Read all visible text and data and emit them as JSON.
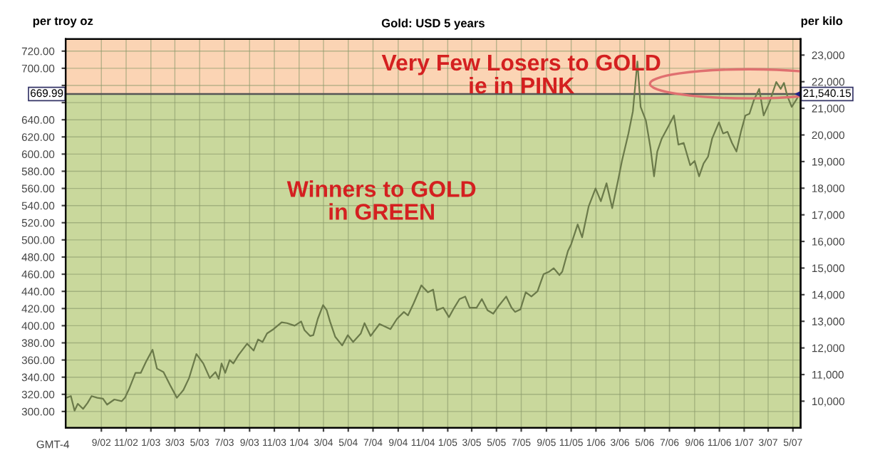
{
  "chart_data": {
    "type": "line",
    "title": "Gold: USD 5 years",
    "ylabel": "per troy oz",
    "y2label": "per kilo",
    "annotations": [
      "Very Few Losers to GOLD\nie in PINK",
      "Winners to GOLD\nin GREEN",
      "GMT-4",
      "21,540.15"
    ],
    "x": [
      "2002-06-07",
      "2002-06-18",
      "2002-06-27",
      "2002-07-05",
      "2002-07-18",
      "2002-07-29",
      "2002-08-08",
      "2002-08-22",
      "2002-09-05",
      "2002-09-15",
      "2002-10-03",
      "2002-10-21",
      "2002-10-29",
      "2002-11-08",
      "2002-11-24",
      "2002-12-07",
      "2002-12-20",
      "2003-01-05",
      "2003-01-16",
      "2003-02-01",
      "2003-02-17",
      "2003-03-06",
      "2003-03-22",
      "2003-04-05",
      "2003-04-23",
      "2003-05-10",
      "2003-05-26",
      "2003-06-09",
      "2003-06-17",
      "2003-06-24",
      "2003-07-03",
      "2003-07-14",
      "2003-07-23",
      "2003-08-05",
      "2003-08-26",
      "2003-09-11",
      "2003-09-22",
      "2003-10-03",
      "2003-10-14",
      "2003-10-30",
      "2003-11-19",
      "2003-12-02",
      "2003-12-21",
      "2004-01-06",
      "2004-01-14",
      "2004-01-28",
      "2004-02-05",
      "2004-02-16",
      "2004-02-29",
      "2004-03-09",
      "2004-03-17",
      "2004-03-30",
      "2004-04-16",
      "2004-04-30",
      "2004-05-13",
      "2004-06-01",
      "2004-06-10",
      "2004-06-25",
      "2004-07-17",
      "2004-08-13",
      "2004-08-29",
      "2004-09-15",
      "2004-09-25",
      "2004-10-09",
      "2004-10-28",
      "2004-11-13",
      "2004-11-26",
      "2004-12-05",
      "2004-12-21",
      "2005-01-04",
      "2005-01-17",
      "2005-01-30",
      "2005-02-13",
      "2005-02-24",
      "2005-03-13",
      "2005-03-26",
      "2005-04-09",
      "2005-04-23",
      "2005-05-08",
      "2005-05-25",
      "2005-06-07",
      "2005-06-16",
      "2005-06-29",
      "2005-07-12",
      "2005-07-26",
      "2005-08-10",
      "2005-08-25",
      "2005-09-08",
      "2005-09-19",
      "2005-10-03",
      "2005-10-10",
      "2005-10-24",
      "2005-11-01",
      "2005-11-17",
      "2005-11-28",
      "2005-12-14",
      "2005-12-31",
      "2006-01-13",
      "2006-01-27",
      "2006-02-10",
      "2006-02-23",
      "2006-03-06",
      "2006-03-22",
      "2006-04-02",
      "2006-04-13",
      "2006-04-21",
      "2006-05-04",
      "2006-05-15",
      "2006-05-24",
      "2006-06-01",
      "2006-06-12",
      "2006-06-28",
      "2006-07-12",
      "2006-07-23",
      "2006-08-05",
      "2006-08-21",
      "2006-09-01",
      "2006-09-12",
      "2006-09-23",
      "2006-10-04",
      "2006-10-14",
      "2006-10-31",
      "2006-11-10",
      "2006-11-21",
      "2006-12-02",
      "2006-12-13",
      "2006-12-24",
      "2007-01-04",
      "2007-01-14",
      "2007-01-25",
      "2007-02-07",
      "2007-02-18",
      "2007-03-04",
      "2007-03-21",
      "2007-04-01",
      "2007-04-09",
      "2007-04-17",
      "2007-04-28",
      "2007-05-09",
      "2007-05-17"
    ],
    "series": [
      {
        "color": "#6b7a4a",
        "values": [
          316,
          318,
          301,
          309,
          303,
          310,
          318,
          316,
          315,
          308,
          314,
          312,
          316,
          326,
          345,
          345,
          358,
          372,
          350,
          346,
          331,
          316,
          325,
          339,
          367,
          356,
          339,
          346,
          338,
          356,
          345,
          360,
          356,
          366,
          379,
          371,
          384,
          381,
          391,
          396,
          404,
          403,
          400,
          405,
          395,
          388,
          389,
          408,
          424,
          418,
          405,
          387,
          377,
          389,
          381,
          391,
          403,
          388,
          402,
          396,
          408,
          416,
          412,
          426,
          447,
          439,
          442,
          418,
          421,
          410,
          421,
          431,
          434,
          421,
          421,
          431,
          418,
          414,
          424,
          434,
          421,
          416,
          419,
          439,
          434,
          440,
          460,
          463,
          467,
          459,
          463,
          487,
          495,
          518,
          503,
          539,
          560,
          545,
          566,
          537,
          566,
          592,
          624,
          650,
          708,
          655,
          639,
          608,
          574,
          603,
          618,
          632,
          645,
          611,
          613,
          587,
          592,
          574,
          589,
          597,
          618,
          637,
          624,
          626,
          613,
          603,
          626,
          645,
          647,
          663,
          676,
          645,
          660,
          684,
          676,
          683,
          668,
          655,
          663,
          670
        ]
      }
    ],
    "xlim": [
      "2002-06-05",
      "2007-05-20"
    ],
    "xticks": [
      {
        "value": "2002-09-01",
        "label": "9/02"
      },
      {
        "value": "2002-11-01",
        "label": "11/02"
      },
      {
        "value": "2003-01-01",
        "label": "1/03"
      },
      {
        "value": "2003-03-01",
        "label": "3/03"
      },
      {
        "value": "2003-05-01",
        "label": "5/03"
      },
      {
        "value": "2003-07-01",
        "label": "7/03"
      },
      {
        "value": "2003-09-01",
        "label": "9/03"
      },
      {
        "value": "2003-11-01",
        "label": "11/03"
      },
      {
        "value": "2004-01-01",
        "label": "1/04"
      },
      {
        "value": "2004-03-01",
        "label": "3/04"
      },
      {
        "value": "2004-05-01",
        "label": "5/04"
      },
      {
        "value": "2004-07-01",
        "label": "7/04"
      },
      {
        "value": "2004-09-01",
        "label": "9/04"
      },
      {
        "value": "2004-11-01",
        "label": "11/04"
      },
      {
        "value": "2005-01-01",
        "label": "1/05"
      },
      {
        "value": "2005-03-01",
        "label": "3/05"
      },
      {
        "value": "2005-05-01",
        "label": "5/05"
      },
      {
        "value": "2005-07-01",
        "label": "7/05"
      },
      {
        "value": "2005-09-01",
        "label": "9/05"
      },
      {
        "value": "2005-11-01",
        "label": "11/05"
      },
      {
        "value": "2006-01-01",
        "label": "1/06"
      },
      {
        "value": "2006-03-01",
        "label": "3/06"
      },
      {
        "value": "2006-05-01",
        "label": "5/06"
      },
      {
        "value": "2006-07-01",
        "label": "7/06"
      },
      {
        "value": "2006-09-01",
        "label": "9/06"
      },
      {
        "value": "2006-11-01",
        "label": "11/06"
      },
      {
        "value": "2007-01-01",
        "label": "1/07"
      },
      {
        "value": "2007-03-01",
        "label": "3/07"
      },
      {
        "value": "2007-05-01",
        "label": "5/07"
      }
    ],
    "ylim": [
      281,
      734
    ],
    "yticks": [
      {
        "value": 300,
        "label": "300.00"
      },
      {
        "value": 320,
        "label": "320.00"
      },
      {
        "value": 340,
        "label": "340.00"
      },
      {
        "value": 360,
        "label": "360.00"
      },
      {
        "value": 380,
        "label": "380.00"
      },
      {
        "value": 400,
        "label": "400.00"
      },
      {
        "value": 420,
        "label": "420.00"
      },
      {
        "value": 440,
        "label": "440.00"
      },
      {
        "value": 460,
        "label": "460.00"
      },
      {
        "value": 480,
        "label": "480.00"
      },
      {
        "value": 500,
        "label": "500.00"
      },
      {
        "value": 520,
        "label": "520.00"
      },
      {
        "value": 540,
        "label": "540.00"
      },
      {
        "value": 560,
        "label": "560.00"
      },
      {
        "value": 580,
        "label": "580.00"
      },
      {
        "value": 600,
        "label": "600.00"
      },
      {
        "value": 620,
        "label": "620.00"
      },
      {
        "value": 640,
        "label": "640.00"
      },
      {
        "value": 660,
        "label": null
      },
      {
        "value": 680,
        "label": null
      },
      {
        "value": 700,
        "label": "700.00"
      },
      {
        "value": 720,
        "label": "720.00"
      }
    ],
    "y2lim": [
      9000,
      23600
    ],
    "y2ticks": [
      {
        "value": 10000,
        "label": "10,000"
      },
      {
        "value": 11000,
        "label": "11,000"
      },
      {
        "value": 12000,
        "label": "12,000"
      },
      {
        "value": 13000,
        "label": "13,000"
      },
      {
        "value": 14000,
        "label": "14,000"
      },
      {
        "value": 15000,
        "label": "15,000"
      },
      {
        "value": 16000,
        "label": "16,000"
      },
      {
        "value": 17000,
        "label": "17,000"
      },
      {
        "value": 18000,
        "label": "18,000"
      },
      {
        "value": 19000,
        "label": "19,000"
      },
      {
        "value": 20000,
        "label": "20,000"
      },
      {
        "value": 21000,
        "label": "21,000"
      },
      {
        "value": 22000,
        "label": "22,000"
      },
      {
        "value": 23000,
        "label": "23,000"
      }
    ],
    "ref_lines": [
      {
        "axis": "y",
        "value": 669.99,
        "label": "669.99",
        "color": "#555555"
      }
    ],
    "bands": [
      {
        "axis": "y",
        "from": 669.99,
        "to": 734,
        "color": "#fbd4b4"
      },
      {
        "axis": "y",
        "from": 281,
        "to": 669.99,
        "color": "#c9d89c"
      }
    ],
    "grid": true,
    "legend": false,
    "marker": "none",
    "line_style": "solid"
  }
}
